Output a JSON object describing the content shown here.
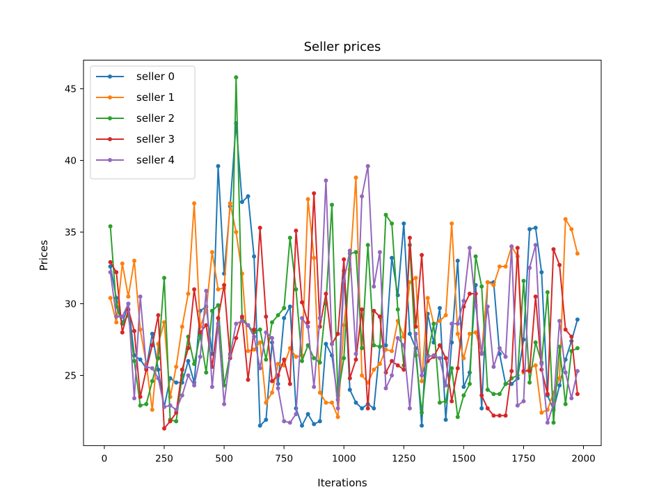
{
  "chart_data": {
    "type": "line",
    "title": "Seller prices",
    "xlabel": "Iterations",
    "ylabel": "Prices",
    "xlim": [
      -87,
      2074
    ],
    "ylim": [
      20.1,
      47.0
    ],
    "xticks": [
      0,
      250,
      500,
      750,
      1000,
      1250,
      1500,
      1750,
      2000
    ],
    "yticks": [
      25,
      30,
      35,
      40,
      45
    ],
    "grid": false,
    "legend_position": "top-left",
    "x": [
      25,
      50,
      75,
      100,
      125,
      150,
      175,
      200,
      225,
      250,
      275,
      300,
      325,
      350,
      375,
      400,
      425,
      450,
      475,
      500,
      525,
      550,
      575,
      600,
      625,
      650,
      675,
      700,
      725,
      750,
      775,
      800,
      825,
      850,
      875,
      900,
      925,
      950,
      975,
      1000,
      1025,
      1050,
      1075,
      1100,
      1125,
      1150,
      1175,
      1200,
      1225,
      1250,
      1275,
      1300,
      1325,
      1350,
      1375,
      1400,
      1425,
      1450,
      1475,
      1500,
      1525,
      1550,
      1575,
      1600,
      1625,
      1650,
      1675,
      1700,
      1725,
      1750,
      1775,
      1800,
      1825,
      1850,
      1875,
      1900,
      1925,
      1950,
      1975
    ],
    "series": [
      {
        "name": "seller 0",
        "color": "#1f77b4",
        "values": [
          32.6,
          30.4,
          28.6,
          30.0,
          26.4,
          26.1,
          25.5,
          27.9,
          25.4,
          22.8,
          24.8,
          24.5,
          24.5,
          26.0,
          24.5,
          29.5,
          29.8,
          26.5,
          39.6,
          32.1,
          36.8,
          42.6,
          37.1,
          37.5,
          33.3,
          21.5,
          21.9,
          27.3,
          24.4,
          29.0,
          29.8,
          22.7,
          21.5,
          22.3,
          21.6,
          21.8,
          27.2,
          26.4,
          23.3,
          32.3,
          24.0,
          23.1,
          22.7,
          23.0,
          22.7,
          27.0,
          27.1,
          33.2,
          30.6,
          35.6,
          27.9,
          26.9,
          21.5,
          29.3,
          27.3,
          29.7,
          21.9,
          27.3,
          33.0,
          24.2,
          25.2,
          31.3,
          22.7,
          31.5,
          31.5,
          26.5,
          24.4,
          24.4,
          24.8,
          27.5,
          35.2,
          35.3,
          32.2,
          23.6,
          22.6,
          24.3,
          26.1,
          27.4,
          28.9
        ]
      },
      {
        "name": "seller 1",
        "color": "#ff7f0e",
        "values": [
          30.4,
          28.7,
          32.8,
          30.5,
          33.0,
          28.2,
          25.8,
          22.6,
          27.2,
          28.7,
          23.5,
          25.6,
          28.4,
          30.7,
          37.0,
          28.4,
          29.5,
          33.6,
          31.0,
          31.1,
          37.0,
          35.0,
          32.1,
          26.7,
          26.8,
          27.3,
          23.1,
          23.8,
          25.8,
          25.7,
          26.9,
          26.3,
          26.4,
          37.3,
          33.2,
          23.8,
          23.1,
          23.1,
          22.1,
          28.5,
          32.4,
          38.8,
          25.0,
          24.5,
          25.4,
          25.8,
          26.8,
          26.7,
          28.8,
          27.7,
          31.5,
          31.8,
          24.6,
          30.4,
          28.6,
          28.8,
          29.2,
          35.6,
          27.9,
          26.2,
          27.9,
          28.0,
          26.6,
          31.5,
          31.3,
          32.6,
          32.6,
          34.0,
          33.3,
          25.2,
          25.5,
          25.7,
          22.4,
          22.6,
          23.8,
          24.8,
          35.9,
          35.2,
          33.5
        ]
      },
      {
        "name": "seller 2",
        "color": "#2ca02c",
        "values": [
          35.4,
          29.8,
          28.6,
          29.2,
          26.0,
          22.9,
          23.0,
          24.6,
          26.2,
          31.8,
          21.9,
          21.8,
          25.0,
          27.7,
          25.8,
          27.8,
          25.2,
          29.5,
          29.9,
          24.3,
          26.5,
          45.8,
          29.0,
          28.5,
          28.0,
          28.2,
          26.1,
          28.7,
          29.2,
          29.7,
          34.6,
          31.0,
          26.0,
          27.1,
          26.2,
          25.9,
          30.0,
          36.9,
          23.6,
          26.2,
          33.5,
          33.6,
          26.9,
          34.1,
          27.1,
          27.0,
          36.2,
          35.6,
          29.6,
          25.7,
          34.1,
          26.4,
          22.4,
          26.4,
          28.6,
          23.1,
          23.2,
          25.5,
          22.1,
          23.6,
          24.4,
          33.3,
          31.2,
          24.0,
          23.7,
          23.7,
          24.4,
          24.8,
          25.0,
          31.6,
          24.5,
          27.3,
          25.9,
          30.8,
          21.7,
          27.0,
          23.0,
          26.7,
          26.9
        ]
      },
      {
        "name": "seller 3",
        "color": "#d62728",
        "values": [
          32.9,
          32.2,
          28.0,
          29.6,
          28.1,
          23.5,
          25.4,
          27.1,
          29.2,
          21.3,
          21.8,
          22.4,
          25.4,
          26.9,
          31.0,
          28.0,
          28.5,
          25.6,
          29.0,
          31.3,
          26.2,
          27.6,
          29.1,
          24.7,
          28.2,
          35.3,
          29.1,
          24.6,
          25.0,
          26.1,
          24.4,
          35.1,
          30.1,
          28.7,
          37.7,
          28.4,
          30.7,
          27.2,
          27.9,
          33.1,
          24.8,
          26.1,
          29.6,
          22.7,
          29.5,
          29.1,
          25.2,
          26.0,
          25.7,
          25.4,
          34.6,
          28.4,
          33.4,
          26.0,
          26.3,
          27.1,
          26.2,
          23.2,
          25.5,
          29.8,
          30.7,
          30.7,
          23.6,
          22.7,
          22.2,
          22.2,
          22.2,
          25.3,
          33.9,
          25.3,
          25.3,
          30.5,
          25.4,
          23.7,
          33.8,
          32.7,
          28.2,
          27.7,
          23.7
        ]
      },
      {
        "name": "seller 4",
        "color": "#9467bd",
        "values": [
          32.2,
          29.1,
          29.1,
          30.0,
          23.4,
          30.5,
          25.6,
          25.5,
          24.8,
          22.8,
          22.9,
          22.6,
          23.6,
          25.0,
          24.3,
          26.3,
          30.9,
          24.2,
          28.6,
          23.0,
          26.4,
          28.6,
          28.8,
          28.5,
          27.7,
          25.5,
          28.0,
          27.6,
          24.1,
          21.8,
          21.7,
          22.3,
          29.0,
          28.4,
          24.2,
          29.0,
          38.6,
          27.2,
          22.7,
          31.6,
          33.7,
          26.5,
          37.5,
          39.6,
          31.2,
          33.6,
          24.1,
          25.0,
          27.6,
          27.1,
          22.7,
          27.9,
          25.0,
          26.3,
          26.4,
          26.2,
          24.3,
          28.6,
          28.6,
          30.2,
          33.9,
          29.9,
          26.5,
          29.8,
          25.6,
          26.9,
          26.3,
          34.0,
          22.9,
          23.2,
          32.5,
          34.1,
          25.8,
          21.7,
          23.0,
          28.8,
          25.2,
          23.4,
          25.3
        ]
      }
    ]
  }
}
